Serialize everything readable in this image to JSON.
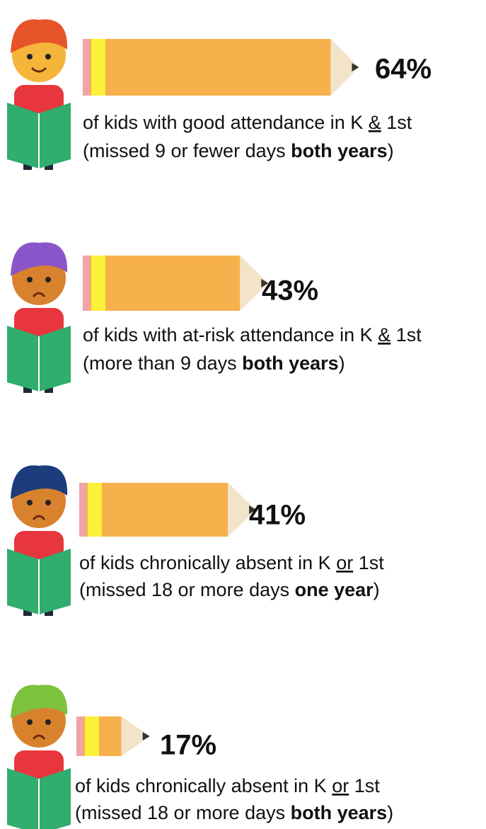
{
  "chart_data": {
    "type": "bar",
    "values": [
      64,
      43,
      41,
      17
    ],
    "value_labels": [
      "64%",
      "43%",
      "41%",
      "17%"
    ],
    "color": "#f6b04c",
    "descriptions": [
      [
        [
          {
            "text": "of kids with good attendance in K "
          },
          {
            "text": "&",
            "underline": true
          },
          {
            "text": " 1st"
          }
        ],
        [
          {
            "text": "(missed 9 or fewer days "
          },
          {
            "text": "both years",
            "bold": true
          },
          {
            "text": ")"
          }
        ]
      ],
      [
        [
          {
            "text": "of kids with at-risk attendance in K "
          },
          {
            "text": "&",
            "underline": true
          },
          {
            "text": " 1st"
          }
        ],
        [
          {
            "text": "(more than 9 days "
          },
          {
            "text": "both years",
            "bold": true
          },
          {
            "text": ")"
          }
        ]
      ],
      [
        [
          {
            "text": "of kids chronically absent in K "
          },
          {
            "text": "or",
            "underline": true
          },
          {
            "text": " 1st"
          }
        ],
        [
          {
            "text": "(missed 18 or more days "
          },
          {
            "text": "one year",
            "bold": true
          },
          {
            "text": ")"
          }
        ]
      ],
      [
        [
          {
            "text": "of kids chronically absent in K "
          },
          {
            "text": "or",
            "underline": true
          },
          {
            "text": " 1st"
          }
        ],
        [
          {
            "text": "(missed 18 or more days "
          },
          {
            "text": "both years",
            "bold": true
          },
          {
            "text": ")"
          }
        ]
      ]
    ]
  }
}
